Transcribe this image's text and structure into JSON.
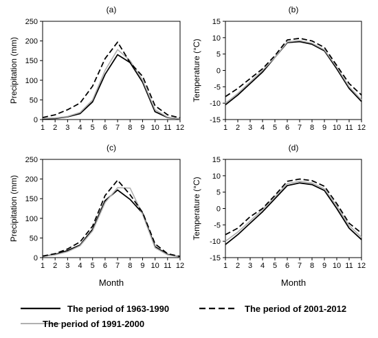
{
  "figure": {
    "xlabel": "Month",
    "legend": [
      {
        "label": "The period of 1963-1990",
        "color": "#000000",
        "style": "solid"
      },
      {
        "label": "The period of 2001-2012",
        "color": "#000000",
        "style": "dashed"
      },
      {
        "label": "The period of 1991-2000",
        "color": "#b0b0b0",
        "style": "solid"
      }
    ]
  },
  "chart_data": [
    {
      "type": "line",
      "panel": "(a)",
      "ylabel": "Precipitation (mm)",
      "x": [
        1,
        2,
        3,
        4,
        5,
        6,
        7,
        8,
        9,
        10,
        11,
        12
      ],
      "ylim": [
        0,
        250
      ],
      "yticks": [
        0,
        50,
        100,
        150,
        200,
        250
      ],
      "series": [
        {
          "name": "The period of 1963-1990",
          "values": [
            2,
            3,
            7,
            15,
            45,
            115,
            165,
            145,
            95,
            20,
            5,
            2
          ]
        },
        {
          "name": "The period of 1991-2000",
          "values": [
            3,
            4,
            8,
            18,
            50,
            125,
            178,
            150,
            100,
            25,
            6,
            2
          ]
        },
        {
          "name": "The period of 2001-2012",
          "values": [
            5,
            12,
            25,
            42,
            85,
            155,
            197,
            145,
            110,
            35,
            12,
            4
          ]
        }
      ]
    },
    {
      "type": "line",
      "panel": "(b)",
      "ylabel": "Temperature (°C)",
      "x": [
        1,
        2,
        3,
        4,
        5,
        6,
        7,
        8,
        9,
        10,
        11,
        12
      ],
      "ylim": [
        -15,
        15
      ],
      "yticks": [
        -15,
        -10,
        -5,
        0,
        5,
        10,
        15
      ],
      "series": [
        {
          "name": "The period of 1963-1990",
          "values": [
            -10.5,
            -7.5,
            -4,
            -0.5,
            4,
            8.5,
            8.8,
            8,
            6,
            0.5,
            -5.5,
            -9.5
          ]
        },
        {
          "name": "The period of 1991-2000",
          "values": [
            -10,
            -7,
            -3.5,
            0,
            4,
            8.7,
            9.1,
            8.3,
            6.3,
            1,
            -5,
            -9
          ]
        },
        {
          "name": "The period of 2001-2012",
          "values": [
            -8,
            -5.5,
            -2.5,
            0.5,
            4.5,
            9.3,
            9.8,
            9,
            7,
            1.5,
            -4,
            -7.5
          ]
        }
      ]
    },
    {
      "type": "line",
      "panel": "(c)",
      "ylabel": "Precipitation (mm)",
      "x": [
        1,
        2,
        3,
        4,
        5,
        6,
        7,
        8,
        9,
        10,
        11,
        12
      ],
      "ylim": [
        0,
        250
      ],
      "yticks": [
        0,
        50,
        100,
        150,
        200,
        250
      ],
      "series": [
        {
          "name": "The period of 1963-1990",
          "values": [
            3,
            8,
            18,
            32,
            72,
            145,
            172,
            148,
            113,
            28,
            8,
            2
          ]
        },
        {
          "name": "The period of 1991-2000",
          "values": [
            3,
            7,
            15,
            30,
            68,
            140,
            178,
            177,
            110,
            25,
            7,
            2
          ]
        },
        {
          "name": "The period of 2001-2012",
          "values": [
            4,
            10,
            22,
            40,
            80,
            158,
            197,
            160,
            115,
            35,
            10,
            3
          ]
        }
      ]
    },
    {
      "type": "line",
      "panel": "(d)",
      "ylabel": "Temperature (°C)",
      "x": [
        1,
        2,
        3,
        4,
        5,
        6,
        7,
        8,
        9,
        10,
        11,
        12
      ],
      "ylim": [
        -15,
        15
      ],
      "yticks": [
        -15,
        -10,
        -5,
        0,
        5,
        10,
        15
      ],
      "series": [
        {
          "name": "The period of 1963-1990",
          "values": [
            -11,
            -8,
            -4.5,
            -1,
            3,
            7,
            7.8,
            7.3,
            5.5,
            0,
            -6,
            -9.5
          ]
        },
        {
          "name": "The period of 1991-2000",
          "values": [
            -10,
            -7.2,
            -3.8,
            -0.3,
            3.6,
            7.6,
            8.3,
            7.8,
            6,
            0.8,
            -5.2,
            -8.8
          ]
        },
        {
          "name": "The period of 2001-2012",
          "values": [
            -8,
            -6,
            -2.5,
            0,
            4,
            8.3,
            9,
            8.5,
            6.8,
            1.5,
            -4.5,
            -7.5
          ]
        }
      ]
    }
  ]
}
